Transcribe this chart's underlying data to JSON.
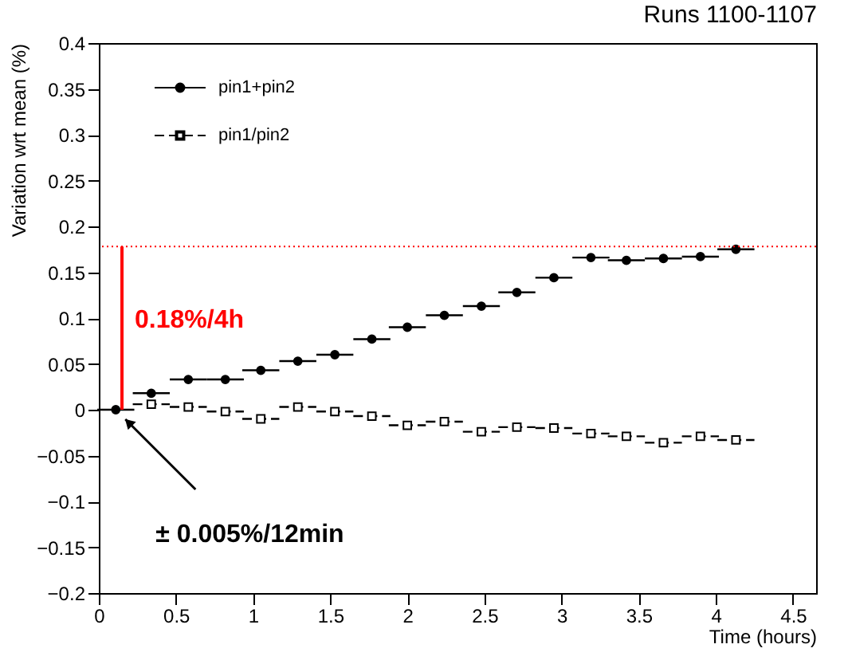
{
  "chart_data": {
    "type": "scatter",
    "title": "Runs 1100-1107",
    "xlabel": "Time (hours)",
    "ylabel": "Variation wrt mean (%)",
    "x": [
      0.11,
      0.34,
      0.58,
      0.82,
      1.05,
      1.29,
      1.53,
      1.77,
      2.0,
      2.24,
      2.48,
      2.71,
      2.95,
      3.19,
      3.42,
      3.66,
      3.9,
      4.13
    ],
    "series": [
      {
        "name": "pin1+pin2",
        "color": "#000000",
        "marker": "circle",
        "line_style": "solid",
        "values": [
          0.0,
          0.018,
          0.033,
          0.033,
          0.043,
          0.053,
          0.06,
          0.077,
          0.09,
          0.103,
          0.113,
          0.128,
          0.144,
          0.166,
          0.163,
          0.165,
          0.167,
          0.175
        ],
        "xerrors": [
          0.12,
          0.12,
          0.12,
          0.12,
          0.12,
          0.12,
          0.12,
          0.12,
          0.12,
          0.12,
          0.12,
          0.12,
          0.12,
          0.12,
          0.12,
          0.12,
          0.12,
          0.12
        ]
      },
      {
        "name": "pin1/pin2",
        "color": "#000000",
        "marker": "square",
        "line_style": "dashed",
        "values": [
          null,
          0.006,
          0.003,
          -0.002,
          -0.01,
          0.003,
          -0.002,
          -0.007,
          -0.017,
          -0.013,
          -0.024,
          -0.019,
          -0.02,
          -0.026,
          -0.029,
          -0.036,
          -0.029,
          -0.033
        ],
        "xerrors": [
          null,
          0.12,
          0.12,
          0.12,
          0.12,
          0.12,
          0.12,
          0.12,
          0.12,
          0.12,
          0.12,
          0.12,
          0.12,
          0.12,
          0.12,
          0.12,
          0.12,
          0.12
        ]
      },
      {
        "type": "line",
        "color": "#ff0000",
        "x": [
          0.15,
          0.15
        ],
        "values": [
          0,
          0.178
        ]
      }
    ],
    "xlim": [
      0,
      4.65
    ],
    "ylim": [
      -0.2,
      0.4
    ],
    "xticks": [
      0,
      0.5,
      1,
      1.5,
      2,
      2.5,
      3,
      3.5,
      4,
      4.5
    ],
    "yticks": [
      -0.2,
      -0.15,
      -0.1,
      -0.05,
      0,
      0.05,
      0.1,
      0.15,
      0.2,
      0.25,
      0.3,
      0.35,
      0.4
    ],
    "ref_lines": [
      {
        "axis": "y",
        "value": 0.178,
        "color": "#ff0000",
        "line_style": "dotted"
      }
    ],
    "annotations": [
      {
        "text": "0.18%/4h",
        "x": 0.15,
        "y": 0.178
      },
      {
        "text": "± 0.005%/12min",
        "x": 0.11,
        "y": 0.0
      }
    ],
    "grid": false,
    "legend": "top left"
  }
}
